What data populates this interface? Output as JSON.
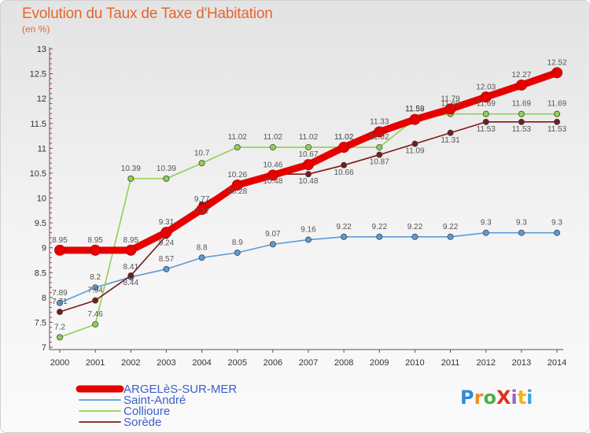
{
  "title": "Evolution du Taux de Taxe d'Habitation",
  "subtitle": "(en %)",
  "logo": {
    "text": "ProXiti",
    "letters": [
      "P",
      "r",
      "o",
      "X",
      "i",
      "t",
      "i"
    ],
    "colors": [
      "#2e8bd6",
      "#f28a1e",
      "#4db04a",
      "#e0311f",
      "#9a63c8",
      "#f5b21a",
      "#3aa7d9"
    ]
  },
  "chart_data": {
    "type": "line",
    "x": [
      2000,
      2001,
      2002,
      2003,
      2004,
      2005,
      2006,
      2007,
      2008,
      2009,
      2010,
      2011,
      2012,
      2013,
      2014
    ],
    "xticks": [
      "2000",
      "2001",
      "2002",
      "2003",
      "2004",
      "2005",
      "2006",
      "2007",
      "2008",
      "2009",
      "2010",
      "2011",
      "2012",
      "2013",
      "2014"
    ],
    "ylim": [
      7,
      13
    ],
    "yticks": [
      "7",
      "7.5",
      "8",
      "8.5",
      "9",
      "9.5",
      "10",
      "10.5",
      "11",
      "11.5",
      "12",
      "12.5",
      "13"
    ],
    "grid": false,
    "legend_placement": "bottom-left",
    "series": [
      {
        "name": "ARGELèS-SUR-MER",
        "color": "#e60000",
        "values": [
          8.95,
          8.95,
          8.95,
          9.31,
          9.77,
          10.26,
          10.46,
          10.67,
          11.02,
          11.33,
          11.58,
          11.79,
          12.03,
          12.27,
          12.52
        ],
        "labels": [
          "8.95",
          "8.95",
          "8.95",
          "9.31",
          "9.77",
          "10.26",
          "10.46",
          "10.67",
          "11.02",
          "11.33",
          "11.58",
          "11.79",
          "12.03",
          "12.27",
          "12.52"
        ]
      },
      {
        "name": "Saint-André",
        "color": "#5b9bd5",
        "values": [
          7.89,
          8.2,
          8.41,
          8.57,
          8.8,
          8.9,
          9.07,
          9.16,
          9.22,
          9.22,
          9.22,
          9.22,
          9.3,
          9.3,
          9.3
        ],
        "labels": [
          "7.89",
          "8.2",
          "8.41",
          "8.57",
          "8.8",
          "8.9",
          "9.07",
          "9.16",
          "9.22",
          "9.22",
          "9.22",
          "9.22",
          "9.3",
          "9.3",
          "9.3"
        ]
      },
      {
        "name": "Collioure",
        "color": "#8fd14f",
        "values": [
          7.2,
          7.46,
          10.39,
          10.39,
          10.7,
          11.02,
          11.02,
          11.02,
          11.02,
          11.02,
          11.59,
          11.69,
          11.69,
          11.69,
          11.69
        ],
        "labels": [
          "7.2",
          "7.46",
          "10.39",
          "10.39",
          "10.7",
          "11.02",
          "11.02",
          "11.02",
          "11.02",
          "11.02",
          "11.59",
          "11.69",
          "11.69",
          "11.69",
          "11.69"
        ]
      },
      {
        "name": "Sorède",
        "color": "#7a1a1a",
        "values": [
          7.71,
          7.94,
          8.44,
          9.24,
          9.87,
          10.28,
          10.48,
          10.48,
          10.66,
          10.87,
          11.09,
          11.31,
          11.53,
          11.53,
          11.53
        ],
        "labels": [
          "7.71",
          "7.94",
          "8.44",
          "9.24",
          "9.87",
          "10.28",
          "10.48",
          "10.48",
          "10.66",
          "10.87",
          "11.09",
          "11.31",
          "11.53",
          "11.53",
          "11.53"
        ]
      }
    ]
  }
}
